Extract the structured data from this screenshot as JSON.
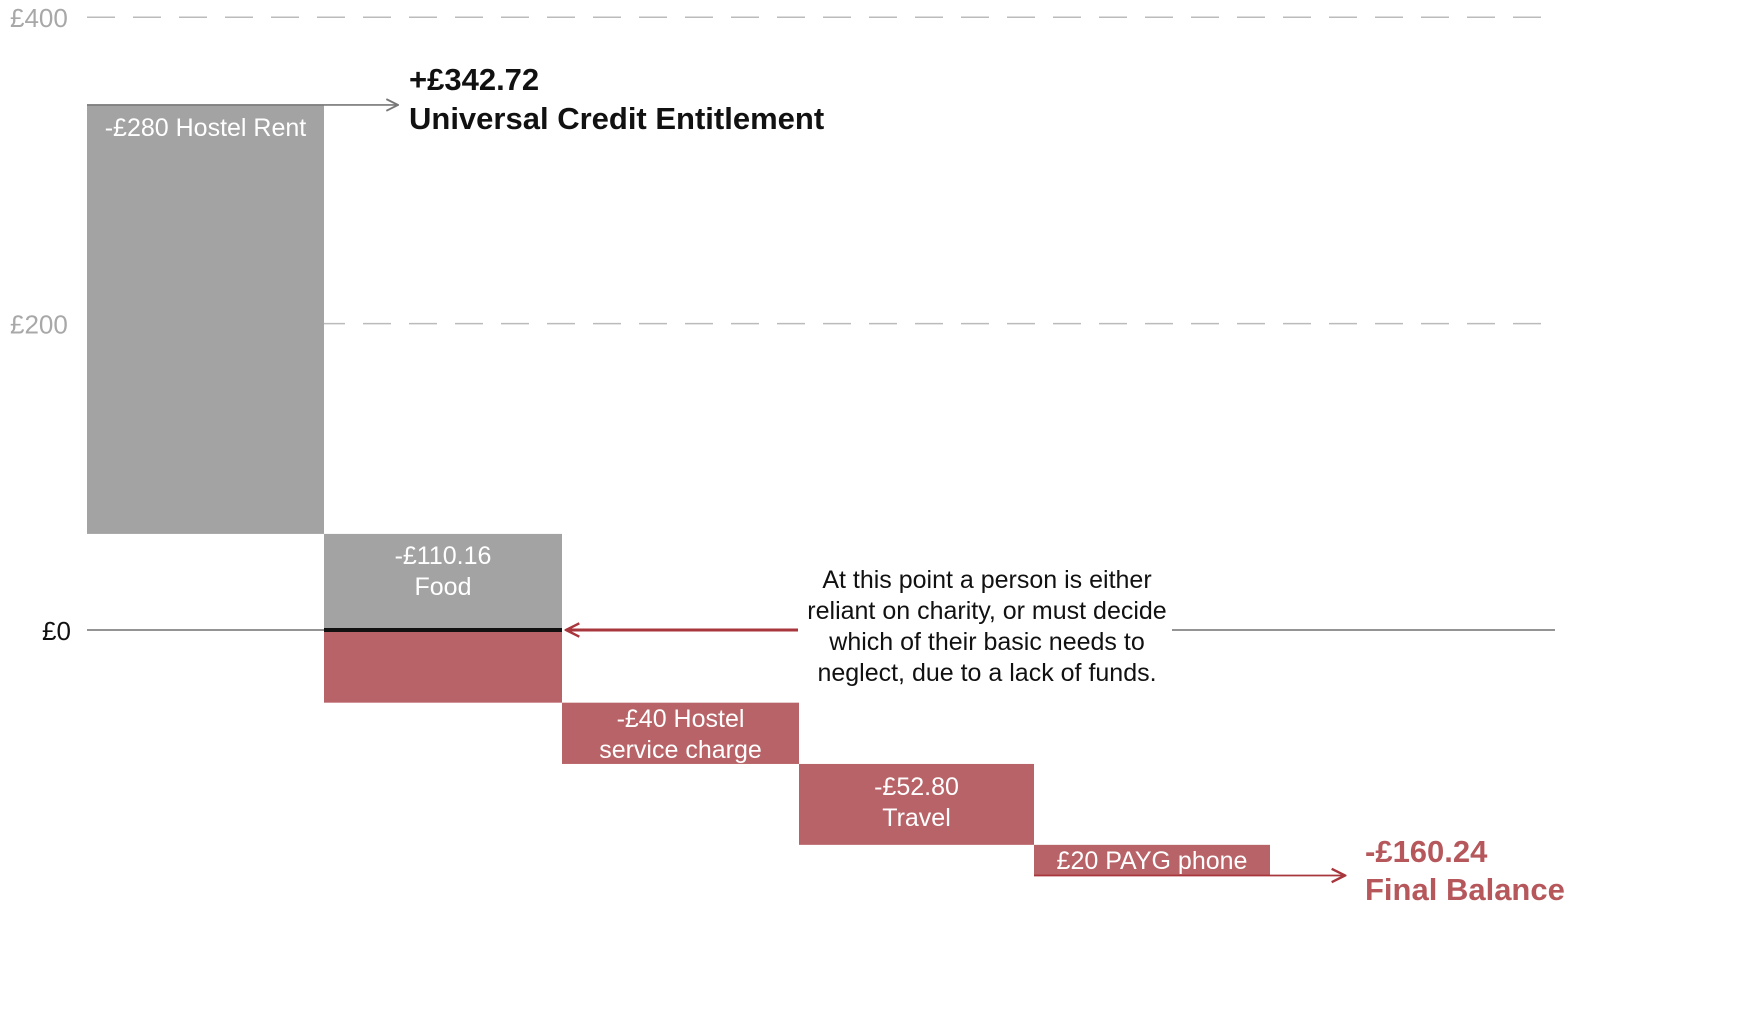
{
  "chart_data": {
    "type": "waterfall",
    "ylim": [
      -160.24,
      400
    ],
    "yticks": [
      {
        "value": 400,
        "label": "£400"
      },
      {
        "value": 200,
        "label": "£200"
      },
      {
        "value": 0,
        "label": "£0"
      }
    ],
    "start": {
      "value": 342.72,
      "amount_label": "+£342.72",
      "label": "Universal Credit Entitlement"
    },
    "steps": [
      {
        "lines": [
          "-£280 Hostel Rent"
        ],
        "delta": -280
      },
      {
        "lines": [
          "-£110.16",
          "Food"
        ],
        "delta": -110.16
      },
      {
        "lines": [
          "-£40 Hostel",
          "service charge"
        ],
        "delta": -40
      },
      {
        "lines": [
          "-£52.80",
          "Travel"
        ],
        "delta": -52.8
      },
      {
        "lines": [
          "£20 PAYG phone"
        ],
        "delta": -20
      }
    ],
    "end": {
      "value": -160.24,
      "amount_label": "-£160.24",
      "label": "Final Balance"
    },
    "annotation": {
      "lines": [
        "At this point a person is either",
        "reliant on charity, or must decide",
        "which of their basic needs to",
        "neglect, due to a lack of funds."
      ]
    },
    "colors": {
      "positive_balance": "#a3a3a4",
      "negative_balance": "#b86367",
      "arrow_red": "#a8363d",
      "final_text": "#b5575b",
      "gridline": "#bbbbbb",
      "tick_text": "#a8a8a8"
    }
  }
}
